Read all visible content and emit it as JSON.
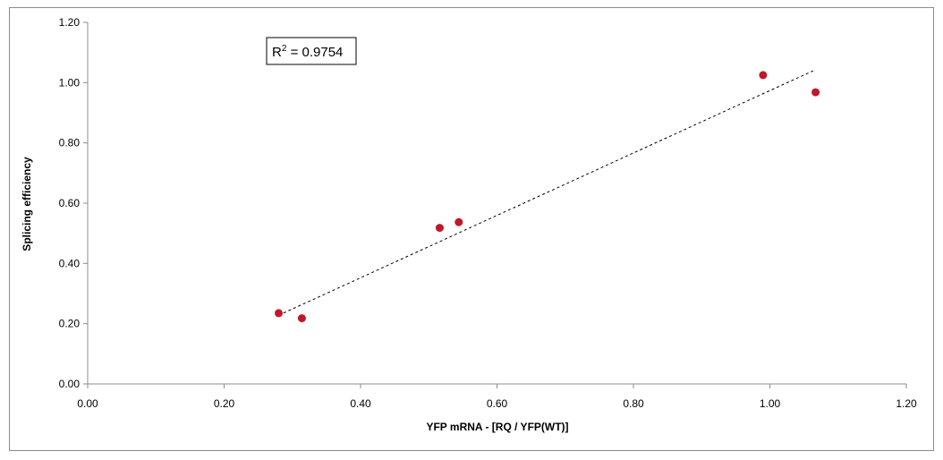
{
  "chart_data": {
    "type": "scatter",
    "title": "",
    "xlabel": "YFP  mRNA - [RQ / YFP(WT)]",
    "ylabel": "Splicing efficiency",
    "xlim": [
      0,
      1.2
    ],
    "ylim": [
      0,
      1.2
    ],
    "xticks": [
      "0.00",
      "0.20",
      "0.40",
      "0.60",
      "0.80",
      "1.00",
      "1.20"
    ],
    "yticks": [
      "0.00",
      "0.20",
      "0.40",
      "0.60",
      "0.80",
      "1.00",
      "1.20"
    ],
    "points": [
      {
        "x": 0.28,
        "y": 0.235
      },
      {
        "x": 0.314,
        "y": 0.218
      },
      {
        "x": 0.516,
        "y": 0.518
      },
      {
        "x": 0.544,
        "y": 0.537
      },
      {
        "x": 0.99,
        "y": 1.025
      },
      {
        "x": 1.067,
        "y": 0.968
      }
    ],
    "point_color": "#c0182a",
    "trendline": {
      "style": "dashed",
      "x_start": 0.28,
      "y_start": 0.228,
      "x_end": 1.067,
      "y_end": 1.043
    },
    "annotation": {
      "r2_prefix": "R",
      "r2_sup": "2",
      "r2_value": " = 0.9754"
    },
    "grid": false,
    "legend": "none"
  }
}
